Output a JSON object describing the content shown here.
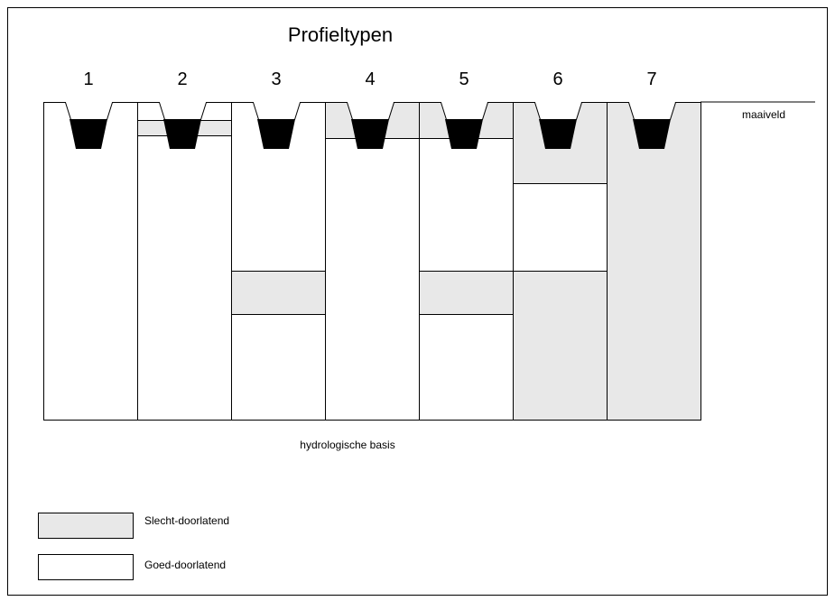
{
  "title": "Profieltypen",
  "profiles": [
    {
      "label": "1"
    },
    {
      "label": "2"
    },
    {
      "label": "3"
    },
    {
      "label": "4"
    },
    {
      "label": "5"
    },
    {
      "label": "6"
    },
    {
      "label": "7"
    }
  ],
  "surface_label": "maaiveld",
  "base_label": "hydrologische basis",
  "legend": [
    {
      "label": "Slecht-doorlatend"
    },
    {
      "label": "Goed-doorlatend"
    }
  ]
}
